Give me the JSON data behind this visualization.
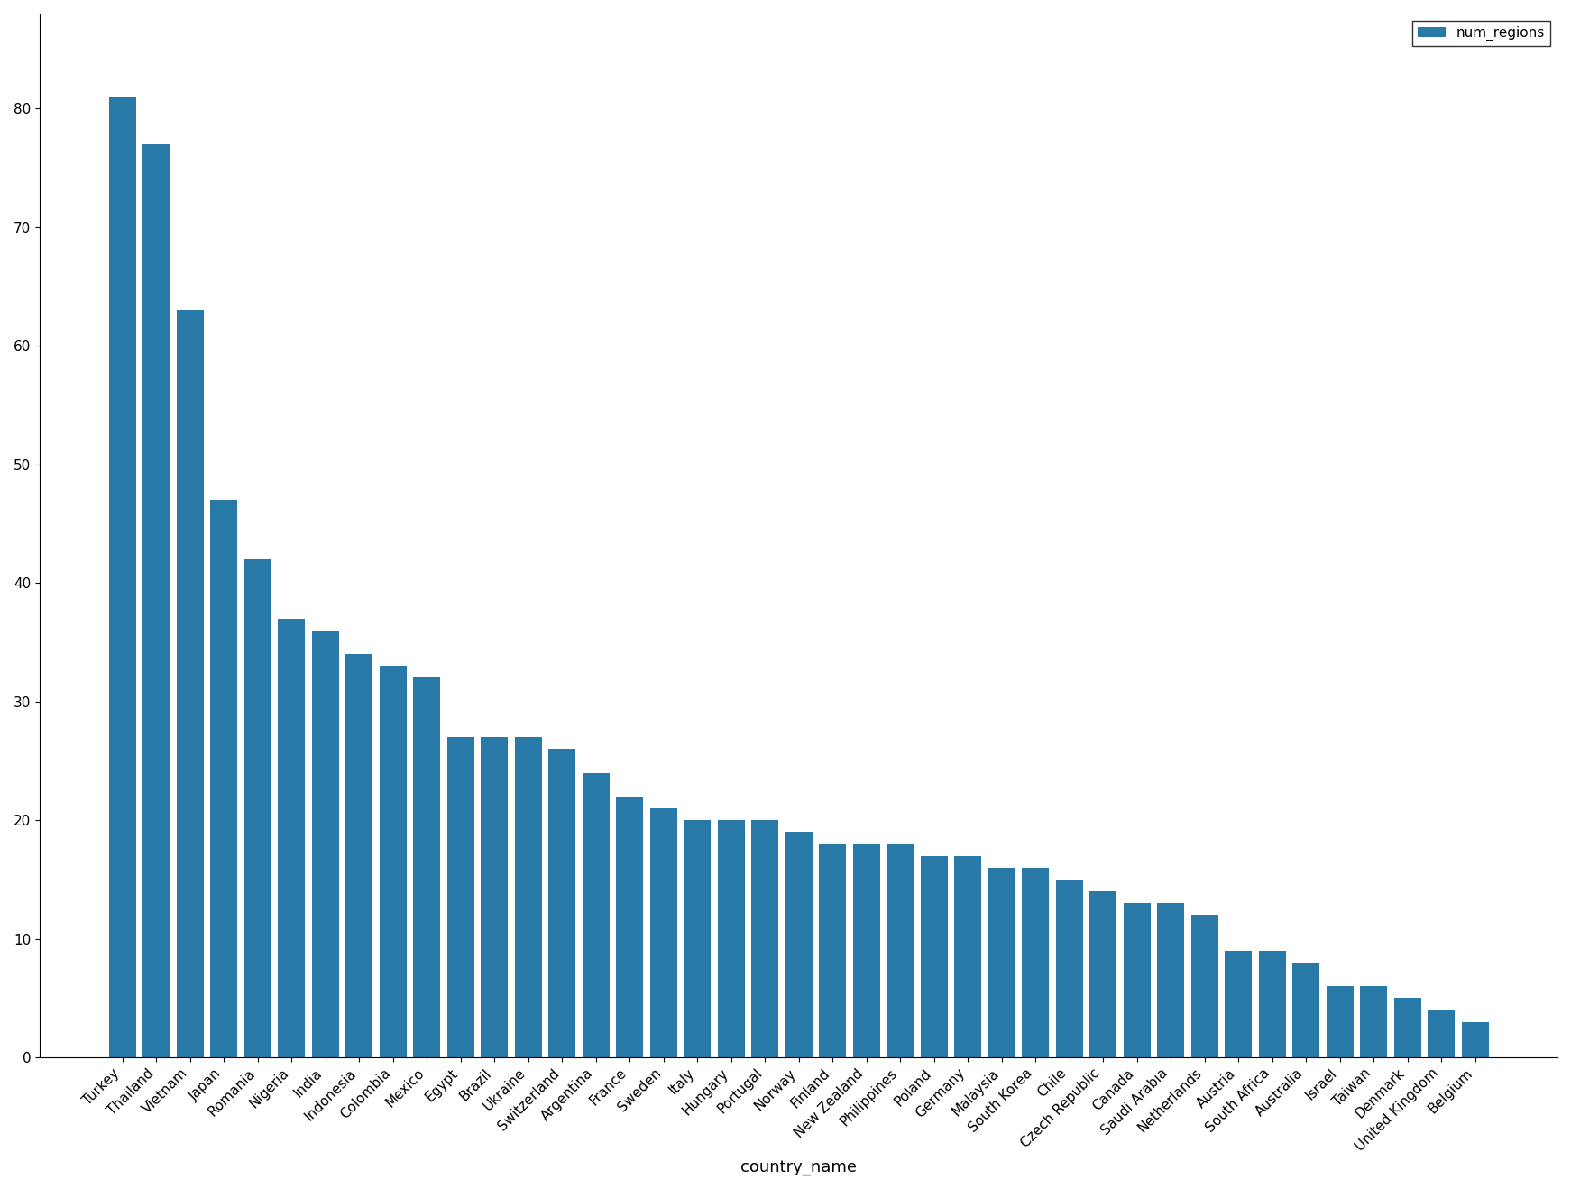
{
  "categories": [
    "Turkey",
    "Thailand",
    "Vietnam",
    "Japan",
    "Romania",
    "Nigeria",
    "India",
    "Indonesia",
    "Colombia",
    "Mexico",
    "Egypt",
    "Brazil",
    "Ukraine",
    "Switzerland",
    "Argentina",
    "France",
    "Sweden",
    "Italy",
    "Hungary",
    "Portugal",
    "Norway",
    "Finland",
    "New Zealand",
    "Philippines",
    "Poland",
    "Germany",
    "Malaysia",
    "South Korea",
    "Chile",
    "Czech Republic",
    "Canada",
    "Saudi Arabia",
    "Netherlands",
    "Austria",
    "South Africa",
    "Australia",
    "Israel",
    "Taiwan",
    "Denmark",
    "United Kingdom",
    "Belgium"
  ],
  "values": [
    81,
    77,
    63,
    47,
    42,
    37,
    36,
    34,
    33,
    32,
    27,
    27,
    27,
    26,
    24,
    22,
    21,
    20,
    20,
    20,
    19,
    18,
    18,
    18,
    17,
    17,
    16,
    16,
    15,
    14,
    13,
    13,
    12,
    9,
    9,
    8,
    6,
    6,
    5,
    4,
    3
  ],
  "bar_color": "#2878a8",
  "xlabel": "country_name",
  "ylabel": "",
  "legend_label": "num_regions",
  "background_color": "#ffffff",
  "ylim": [
    0,
    88
  ],
  "yticks": [
    0,
    10,
    20,
    30,
    40,
    50,
    60,
    70,
    80
  ]
}
